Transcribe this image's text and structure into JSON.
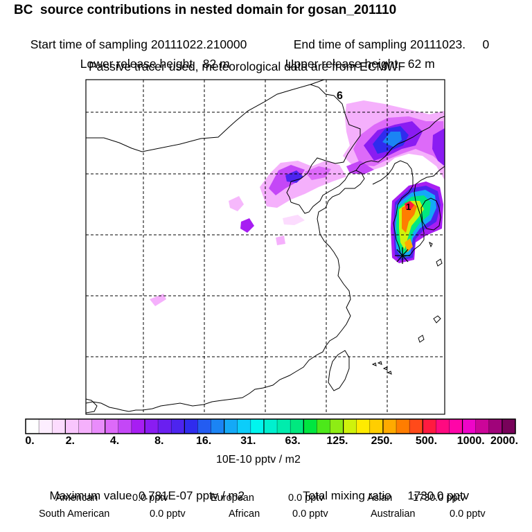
{
  "title": "BC  source contributions in nested domain for gosan_201110",
  "header": {
    "start_label": "Start time of sampling",
    "start_value": "20111022.210000",
    "end_label": "End time of sampling",
    "end_value": "20111023.     0",
    "lower_label": "Lower release height",
    "lower_value": "82 m",
    "upper_label": "Upper release height",
    "upper_value": "62 m",
    "note": "Passive tracer used, meteorological data are from ECMWF"
  },
  "map": {
    "labels": {
      "six": "6",
      "one": "1"
    }
  },
  "colorbar": {
    "ticks": [
      "0.",
      "2.",
      "4.",
      "8.",
      "16.",
      "31.",
      "63.",
      "125.",
      "250.",
      "500.",
      "1000.",
      "2000."
    ],
    "units": "10E-10 pptv / m2",
    "colors": [
      "#ffffff",
      "#fdeeff",
      "#fcdcfe",
      "#f9c6fd",
      "#f5b0fc",
      "#e98cfb",
      "#dd6af9",
      "#c447f7",
      "#a71ef2",
      "#8a1cf2",
      "#6a1ff0",
      "#4d24ef",
      "#2f2cee",
      "#235cf1",
      "#1b84f4",
      "#14a9f7",
      "#0ccdfa",
      "#00f5ee",
      "#00f0cf",
      "#00ecad",
      "#00e87f",
      "#00e640",
      "#4ce81a",
      "#8eec14",
      "#cff20c",
      "#ffeb00",
      "#ffce00",
      "#ffaa00",
      "#ff7d00",
      "#ff4a1a",
      "#ff1a40",
      "#ff0a80",
      "#ff05a8",
      "#ee05c8",
      "#cc0599",
      "#a0037a",
      "#78025a"
    ]
  },
  "summary": {
    "max_label": "Maximum value",
    "max_value": "0.781E-07 pptv / m2",
    "total_label": "Total mixing ratio",
    "total_value": "1730.0 pptv",
    "american_label": "American",
    "american_value": "0.0 pptv",
    "european_label": "European",
    "european_value": "0.0 pptv",
    "asian_label": "Asian",
    "asian_value": "1730.0 pptv",
    "south_american_label": "South American",
    "south_american_value": "0.0 pptv",
    "african_label": "African",
    "african_value": "0.0 pptv",
    "australian_label": "Australian",
    "australian_value": "0.0 pptv"
  }
}
